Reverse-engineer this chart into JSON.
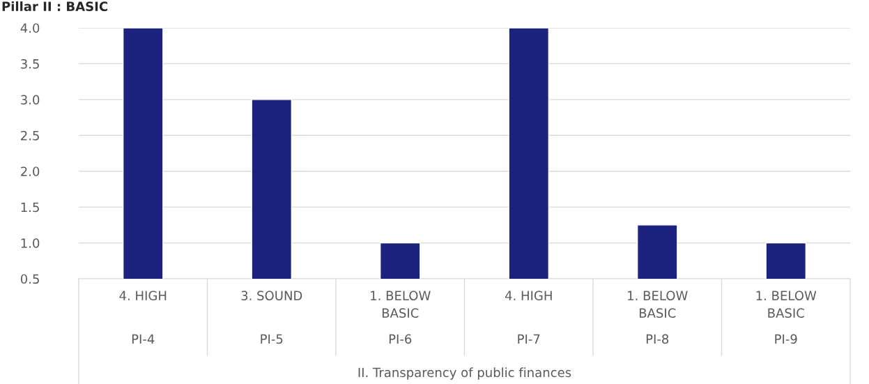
{
  "chart_data": {
    "type": "bar",
    "title": "Pillar II : BASIC",
    "categories": [
      "4. HIGH\n\nPI-4",
      "3. SOUND\n\nPI-5",
      "1. BELOW\nBASIC\n\nPI-6",
      "4. HIGH\n\nPI-7",
      "1. BELOW\nBASIC\n\nPI-8",
      "1. BELOW\nBASIC\n\nPI-9"
    ],
    "values": [
      4,
      3,
      1,
      4,
      1.25,
      1
    ],
    "color": "#1b237e",
    "ylim": [
      0.5,
      4.0
    ],
    "yticks": [
      {
        "value": 0.5,
        "label": "0.5"
      },
      {
        "value": 1.0,
        "label": "1.0"
      },
      {
        "value": 1.5,
        "label": "1.5"
      },
      {
        "value": 2.0,
        "label": "2.0"
      },
      {
        "value": 2.5,
        "label": "2.5"
      },
      {
        "value": 3.0,
        "label": "3.0"
      },
      {
        "value": 3.5,
        "label": "3.5"
      },
      {
        "value": 4.0,
        "label": "4.0"
      }
    ],
    "grid": "y",
    "annotations": [
      "II. Transparency of public finances"
    ]
  }
}
